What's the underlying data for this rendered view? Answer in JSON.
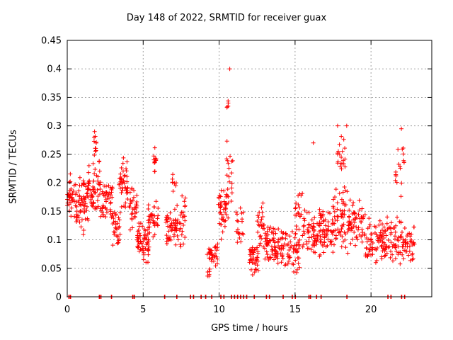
{
  "chart_data": {
    "type": "scatter",
    "title": "Day 148 of 2022, SRMTID for receiver guax",
    "xlabel": "GPS time / hours",
    "ylabel": "SRMTID / TECUs",
    "xlim": [
      0,
      24
    ],
    "ylim": [
      0,
      0.45
    ],
    "xticks": [
      0,
      5,
      10,
      15,
      20
    ],
    "yticks": [
      0,
      0.05,
      0.1,
      0.15,
      0.2,
      0.25,
      0.3,
      0.35,
      0.4,
      0.45
    ],
    "grid": true,
    "marker": "+",
    "color": "#ff0000",
    "series": [
      {
        "name": "SRMTID",
        "clusters": [
          {
            "x": [
              0.0,
              0.6
            ],
            "y": [
              0.13,
              0.22
            ],
            "n": 40
          },
          {
            "x": [
              0.6,
              1.4
            ],
            "y": [
              0.1,
              0.22
            ],
            "n": 60
          },
          {
            "x": [
              1.4,
              2.2
            ],
            "y": [
              0.12,
              0.25
            ],
            "n": 55
          },
          {
            "x": [
              1.7,
              2.0
            ],
            "y": [
              0.24,
              0.295
            ],
            "n": 10
          },
          {
            "x": [
              2.2,
              3.0
            ],
            "y": [
              0.13,
              0.22
            ],
            "n": 45
          },
          {
            "x": [
              3.0,
              3.5
            ],
            "y": [
              0.08,
              0.16
            ],
            "n": 30
          },
          {
            "x": [
              3.4,
              4.0
            ],
            "y": [
              0.14,
              0.25
            ],
            "n": 40
          },
          {
            "x": [
              4.0,
              4.6
            ],
            "y": [
              0.11,
              0.2
            ],
            "n": 30
          },
          {
            "x": [
              4.6,
              5.4
            ],
            "y": [
              0.06,
              0.14
            ],
            "n": 60
          },
          {
            "x": [
              5.3,
              6.0
            ],
            "y": [
              0.1,
              0.17
            ],
            "n": 35
          },
          {
            "x": [
              5.6,
              5.9
            ],
            "y": [
              0.2,
              0.27
            ],
            "n": 12
          },
          {
            "x": [
              6.5,
              7.1
            ],
            "y": [
              0.08,
              0.16
            ],
            "n": 35
          },
          {
            "x": [
              6.9,
              7.2
            ],
            "y": [
              0.17,
              0.22
            ],
            "n": 8
          },
          {
            "x": [
              7.1,
              7.8
            ],
            "y": [
              0.08,
              0.19
            ],
            "n": 40
          },
          {
            "x": [
              9.2,
              9.5
            ],
            "y": [
              0.018,
              0.08
            ],
            "n": 8
          },
          {
            "x": [
              9.3,
              9.9
            ],
            "y": [
              0.05,
              0.1
            ],
            "n": 30
          },
          {
            "x": [
              9.9,
              10.6
            ],
            "y": [
              0.1,
              0.2
            ],
            "n": 45
          },
          {
            "x": [
              10.5,
              10.9
            ],
            "y": [
              0.15,
              0.3
            ],
            "n": 18
          },
          {
            "x": [
              10.5,
              10.7
            ],
            "y": [
              0.33,
              0.345
            ],
            "n": 4
          },
          {
            "x": [
              11.1,
              11.6
            ],
            "y": [
              0.08,
              0.16
            ],
            "n": 20
          },
          {
            "x": [
              12.0,
              12.6
            ],
            "y": [
              0.035,
              0.1
            ],
            "n": 40
          },
          {
            "x": [
              12.5,
              13.0
            ],
            "y": [
              0.08,
              0.17
            ],
            "n": 25
          },
          {
            "x": [
              13.0,
              14.4
            ],
            "y": [
              0.05,
              0.13
            ],
            "n": 90
          },
          {
            "x": [
              14.4,
              15.3
            ],
            "y": [
              0.04,
              0.12
            ],
            "n": 45
          },
          {
            "x": [
              15.0,
              15.5
            ],
            "y": [
              0.1,
              0.2
            ],
            "n": 20
          },
          {
            "x": [
              15.5,
              16.3
            ],
            "y": [
              0.06,
              0.16
            ],
            "n": 40
          },
          {
            "x": [
              16.2,
              16.7
            ],
            "y": [
              0.05,
              0.14
            ],
            "n": 25
          },
          {
            "x": [
              16.6,
              17.5
            ],
            "y": [
              0.06,
              0.16
            ],
            "n": 55
          },
          {
            "x": [
              17.5,
              18.5
            ],
            "y": [
              0.06,
              0.2
            ],
            "n": 60
          },
          {
            "x": [
              17.8,
              18.3
            ],
            "y": [
              0.2,
              0.3
            ],
            "n": 20
          },
          {
            "x": [
              18.5,
              19.5
            ],
            "y": [
              0.08,
              0.18
            ],
            "n": 60
          },
          {
            "x": [
              19.5,
              21.0
            ],
            "y": [
              0.05,
              0.15
            ],
            "n": 80
          },
          {
            "x": [
              21.0,
              22.0
            ],
            "y": [
              0.05,
              0.15
            ],
            "n": 50
          },
          {
            "x": [
              21.6,
              22.2
            ],
            "y": [
              0.16,
              0.29
            ],
            "n": 18
          },
          {
            "x": [
              22.0,
              22.9
            ],
            "y": [
              0.05,
              0.13
            ],
            "n": 45
          }
        ],
        "outliers": [
          {
            "x": 10.7,
            "y": 0.4
          },
          {
            "x": 10.6,
            "y": 0.34
          },
          {
            "x": 17.8,
            "y": 0.3
          },
          {
            "x": 22.0,
            "y": 0.295
          },
          {
            "x": 1.8,
            "y": 0.29
          },
          {
            "x": 16.2,
            "y": 0.27
          },
          {
            "x": 18.4,
            "y": 0.3
          }
        ],
        "zeros": [
          0.1,
          0.2,
          2.1,
          2.2,
          2.9,
          4.3,
          4.4,
          6.4,
          7.2,
          8.1,
          8.3,
          8.8,
          9.1,
          9.5,
          10.1,
          10.3,
          10.8,
          11.0,
          11.2,
          11.4,
          11.6,
          11.8,
          12.3,
          13.1,
          13.3,
          14.2,
          14.8,
          15.0,
          15.9,
          16.0,
          16.4,
          16.7,
          18.4,
          21.1,
          21.3,
          22.0,
          22.2
        ]
      }
    ]
  }
}
